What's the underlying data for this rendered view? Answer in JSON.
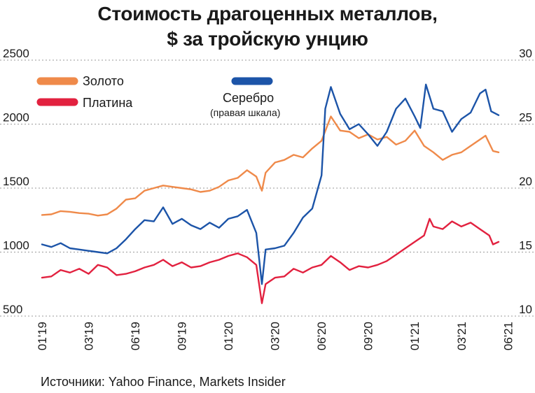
{
  "chart_data": {
    "type": "line",
    "title_line1": "Стоимость драгоценных металлов,",
    "title_line2": "$ за тройскую унцию",
    "y_left_ticks": [
      500,
      1000,
      1500,
      2000,
      2500
    ],
    "y_left_range": [
      500,
      2500
    ],
    "y_right_ticks": [
      10,
      15,
      20,
      25,
      30
    ],
    "y_right_range": [
      10,
      30
    ],
    "x_range": [
      2019.0,
      2021.45
    ],
    "x_ticks": [
      {
        "label": "01'19",
        "x": 2019.0
      },
      {
        "label": "03'19",
        "x": 2019.25
      },
      {
        "label": "06'19",
        "x": 2019.5
      },
      {
        "label": "09'19",
        "x": 2019.75
      },
      {
        "label": "01'20",
        "x": 2020.0
      },
      {
        "label": "03'20",
        "x": 2020.25
      },
      {
        "label": "06'20",
        "x": 2020.5
      },
      {
        "label": "09'20",
        "x": 2020.75
      },
      {
        "label": "01'21",
        "x": 2021.0
      },
      {
        "label": "03'21",
        "x": 2021.25
      },
      {
        "label": "06'21",
        "x": 2021.5
      }
    ],
    "grid": "horizontal",
    "legend_position": "top-left",
    "series": [
      {
        "name": "Золото",
        "axis": "left",
        "color": "#ef8a4a",
        "points": [
          [
            2019.0,
            1290
          ],
          [
            2019.05,
            1295
          ],
          [
            2019.1,
            1320
          ],
          [
            2019.15,
            1315
          ],
          [
            2019.2,
            1305
          ],
          [
            2019.25,
            1300
          ],
          [
            2019.3,
            1285
          ],
          [
            2019.35,
            1295
          ],
          [
            2019.4,
            1340
          ],
          [
            2019.45,
            1410
          ],
          [
            2019.5,
            1420
          ],
          [
            2019.55,
            1480
          ],
          [
            2019.6,
            1500
          ],
          [
            2019.65,
            1520
          ],
          [
            2019.7,
            1510
          ],
          [
            2019.75,
            1500
          ],
          [
            2019.8,
            1490
          ],
          [
            2019.85,
            1470
          ],
          [
            2019.9,
            1480
          ],
          [
            2019.95,
            1510
          ],
          [
            2020.0,
            1560
          ],
          [
            2020.05,
            1580
          ],
          [
            2020.1,
            1640
          ],
          [
            2020.15,
            1590
          ],
          [
            2020.18,
            1480
          ],
          [
            2020.2,
            1620
          ],
          [
            2020.25,
            1700
          ],
          [
            2020.3,
            1720
          ],
          [
            2020.35,
            1760
          ],
          [
            2020.4,
            1740
          ],
          [
            2020.45,
            1810
          ],
          [
            2020.5,
            1870
          ],
          [
            2020.55,
            2060
          ],
          [
            2020.6,
            1950
          ],
          [
            2020.65,
            1940
          ],
          [
            2020.7,
            1890
          ],
          [
            2020.75,
            1920
          ],
          [
            2020.8,
            1880
          ],
          [
            2020.85,
            1900
          ],
          [
            2020.9,
            1840
          ],
          [
            2020.95,
            1870
          ],
          [
            2021.0,
            1950
          ],
          [
            2021.05,
            1830
          ],
          [
            2021.1,
            1780
          ],
          [
            2021.15,
            1720
          ],
          [
            2021.2,
            1760
          ],
          [
            2021.25,
            1780
          ],
          [
            2021.3,
            1830
          ],
          [
            2021.35,
            1880
          ],
          [
            2021.38,
            1910
          ],
          [
            2021.42,
            1790
          ],
          [
            2021.45,
            1780
          ]
        ]
      },
      {
        "name": "Платина",
        "axis": "left",
        "color": "#e2213f",
        "points": [
          [
            2019.0,
            800
          ],
          [
            2019.05,
            810
          ],
          [
            2019.1,
            860
          ],
          [
            2019.15,
            840
          ],
          [
            2019.2,
            870
          ],
          [
            2019.25,
            830
          ],
          [
            2019.3,
            900
          ],
          [
            2019.35,
            880
          ],
          [
            2019.4,
            820
          ],
          [
            2019.45,
            830
          ],
          [
            2019.5,
            850
          ],
          [
            2019.55,
            880
          ],
          [
            2019.6,
            900
          ],
          [
            2019.65,
            940
          ],
          [
            2019.7,
            890
          ],
          [
            2019.75,
            920
          ],
          [
            2019.8,
            880
          ],
          [
            2019.85,
            890
          ],
          [
            2019.9,
            920
          ],
          [
            2019.95,
            940
          ],
          [
            2020.0,
            970
          ],
          [
            2020.05,
            990
          ],
          [
            2020.1,
            960
          ],
          [
            2020.15,
            900
          ],
          [
            2020.18,
            600
          ],
          [
            2020.2,
            750
          ],
          [
            2020.25,
            800
          ],
          [
            2020.3,
            810
          ],
          [
            2020.35,
            870
          ],
          [
            2020.4,
            840
          ],
          [
            2020.45,
            880
          ],
          [
            2020.5,
            900
          ],
          [
            2020.55,
            970
          ],
          [
            2020.6,
            920
          ],
          [
            2020.65,
            860
          ],
          [
            2020.7,
            890
          ],
          [
            2020.75,
            880
          ],
          [
            2020.8,
            900
          ],
          [
            2020.85,
            930
          ],
          [
            2020.9,
            980
          ],
          [
            2020.95,
            1030
          ],
          [
            2021.0,
            1080
          ],
          [
            2021.05,
            1130
          ],
          [
            2021.08,
            1260
          ],
          [
            2021.1,
            1200
          ],
          [
            2021.15,
            1180
          ],
          [
            2021.2,
            1240
          ],
          [
            2021.25,
            1200
          ],
          [
            2021.3,
            1230
          ],
          [
            2021.35,
            1180
          ],
          [
            2021.4,
            1130
          ],
          [
            2021.42,
            1060
          ],
          [
            2021.45,
            1080
          ]
        ]
      },
      {
        "name": "Серебро",
        "note": "(правая шкала)",
        "axis": "right",
        "color": "#1c54a8",
        "points": [
          [
            2019.0,
            15.6
          ],
          [
            2019.05,
            15.4
          ],
          [
            2019.1,
            15.7
          ],
          [
            2019.15,
            15.3
          ],
          [
            2019.2,
            15.2
          ],
          [
            2019.25,
            15.1
          ],
          [
            2019.3,
            15.0
          ],
          [
            2019.35,
            14.9
          ],
          [
            2019.4,
            15.3
          ],
          [
            2019.45,
            16.0
          ],
          [
            2019.5,
            16.8
          ],
          [
            2019.55,
            17.5
          ],
          [
            2019.6,
            17.4
          ],
          [
            2019.65,
            18.5
          ],
          [
            2019.7,
            17.2
          ],
          [
            2019.75,
            17.6
          ],
          [
            2019.8,
            17.1
          ],
          [
            2019.85,
            16.8
          ],
          [
            2019.9,
            17.3
          ],
          [
            2019.95,
            16.9
          ],
          [
            2020.0,
            17.6
          ],
          [
            2020.05,
            17.8
          ],
          [
            2020.1,
            18.3
          ],
          [
            2020.15,
            16.5
          ],
          [
            2020.18,
            12.5
          ],
          [
            2020.2,
            15.2
          ],
          [
            2020.25,
            15.3
          ],
          [
            2020.3,
            15.5
          ],
          [
            2020.35,
            16.5
          ],
          [
            2020.4,
            17.7
          ],
          [
            2020.45,
            18.4
          ],
          [
            2020.5,
            21.0
          ],
          [
            2020.52,
            26.2
          ],
          [
            2020.55,
            27.9
          ],
          [
            2020.6,
            25.8
          ],
          [
            2020.65,
            24.6
          ],
          [
            2020.7,
            25.0
          ],
          [
            2020.75,
            24.2
          ],
          [
            2020.8,
            23.3
          ],
          [
            2020.85,
            24.4
          ],
          [
            2020.9,
            26.2
          ],
          [
            2020.95,
            27.0
          ],
          [
            2021.0,
            25.6
          ],
          [
            2021.03,
            24.7
          ],
          [
            2021.06,
            28.1
          ],
          [
            2021.1,
            26.2
          ],
          [
            2021.15,
            26.0
          ],
          [
            2021.2,
            24.4
          ],
          [
            2021.25,
            25.4
          ],
          [
            2021.3,
            25.9
          ],
          [
            2021.35,
            27.4
          ],
          [
            2021.38,
            27.7
          ],
          [
            2021.41,
            26.0
          ],
          [
            2021.45,
            25.7
          ]
        ]
      }
    ]
  },
  "source": "Источники: Yahoo Finance, Markets Insider"
}
